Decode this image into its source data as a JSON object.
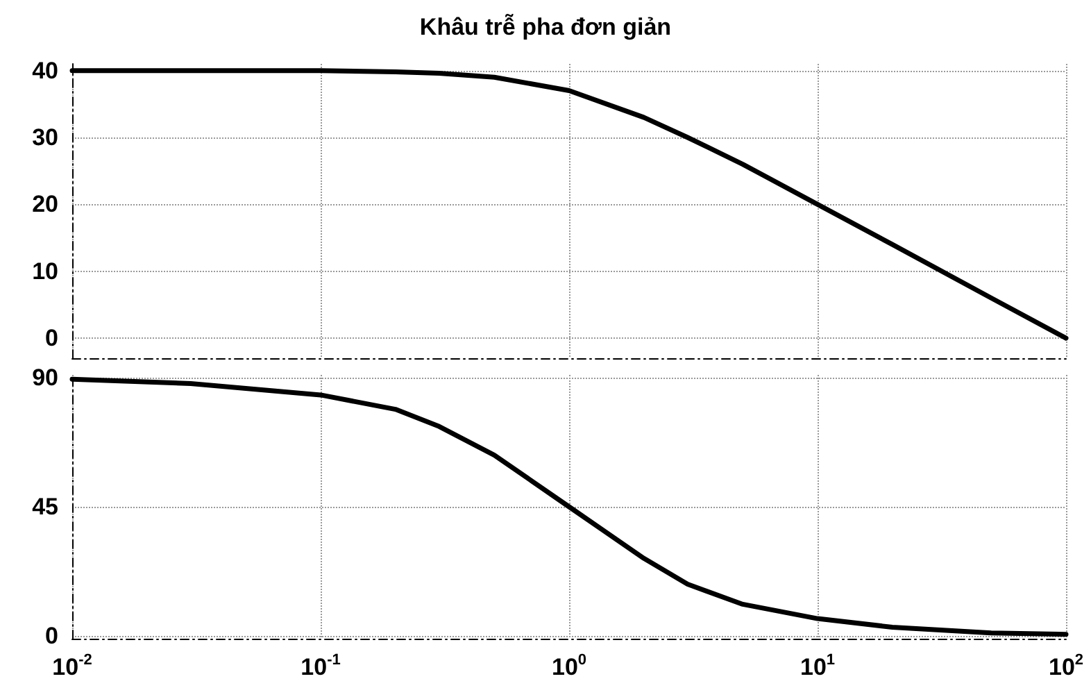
{
  "chart_data": [
    {
      "type": "line",
      "title": "Khâu trễ pha đơn giản",
      "log": "x",
      "grid": true,
      "line_style": "solid",
      "tick_labels": "y",
      "x": [
        0.01,
        0.03,
        0.1,
        0.2,
        0.3,
        0.5,
        1,
        2,
        3,
        5,
        10,
        20,
        50,
        100
      ],
      "series": [
        {
          "color": "#000000",
          "values": [
            40,
            40,
            40,
            39.8,
            39.6,
            39,
            37,
            33,
            30,
            26,
            20,
            14,
            6,
            0
          ]
        }
      ],
      "xlim": [
        0.01,
        100
      ],
      "xticks": [
        {
          "value": 0.01,
          "label": null
        },
        {
          "value": 0.1,
          "label": null
        },
        {
          "value": 1,
          "label": null
        },
        {
          "value": 10,
          "label": null
        },
        {
          "value": 100,
          "label": null
        }
      ],
      "ylim": [
        -3,
        41
      ],
      "yticks": [
        0,
        10,
        20,
        30,
        40
      ]
    },
    {
      "type": "line",
      "log": "x",
      "grid": true,
      "line_style": "solid",
      "x": [
        0.01,
        0.03,
        0.1,
        0.2,
        0.3,
        0.5,
        1,
        2,
        3,
        5,
        10,
        20,
        50,
        100
      ],
      "series": [
        {
          "color": "#000000",
          "values": [
            89.5,
            88,
            84,
            79,
            73,
            63,
            45,
            27,
            18,
            11,
            6,
            3,
            1,
            0.5
          ]
        }
      ],
      "xlim": [
        0.01,
        100
      ],
      "xticks": [
        {
          "value": 0.01,
          "label": "10$^{-2}$"
        },
        {
          "value": 0.1,
          "label": "10$^{-1}$"
        },
        {
          "value": 1,
          "label": "10$^{0}$"
        },
        {
          "value": 10,
          "label": "10$^{1}$"
        },
        {
          "value": 100,
          "label": "10$^{2}$"
        }
      ],
      "ylim": [
        -1,
        91
      ],
      "yticks": [
        0,
        45,
        90
      ]
    }
  ]
}
